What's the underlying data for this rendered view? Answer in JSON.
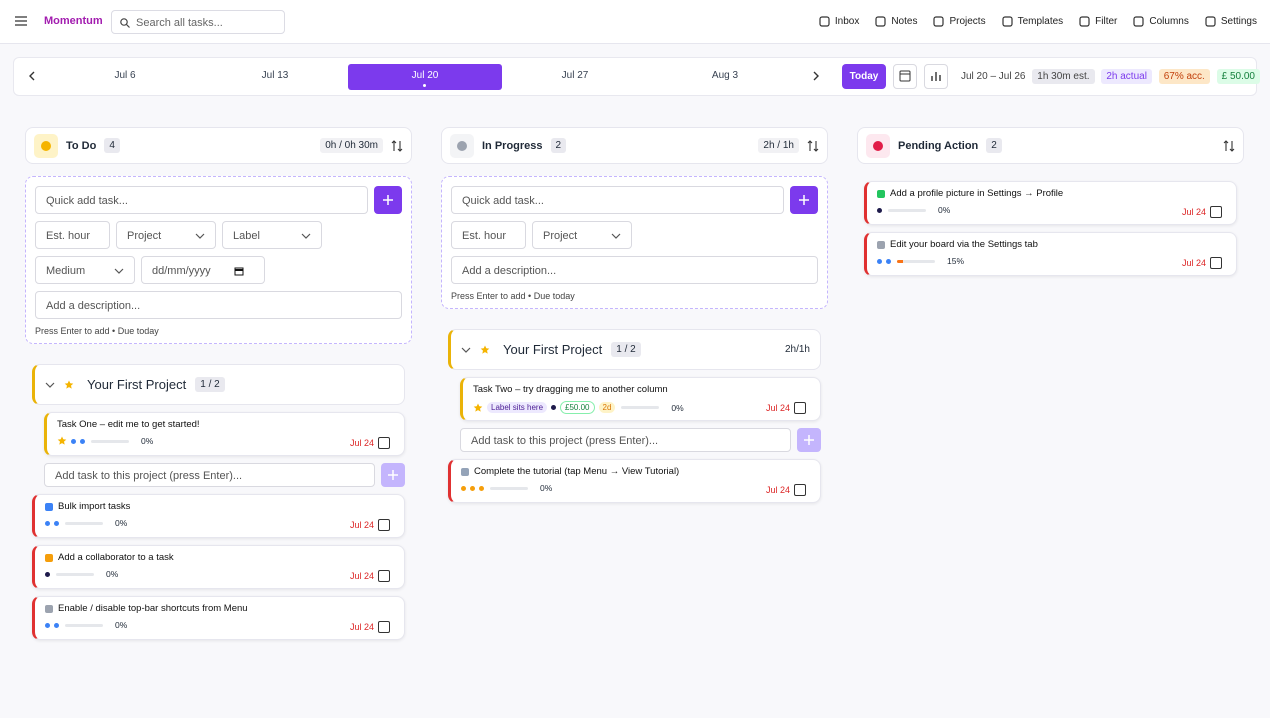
{
  "header": {
    "brand": "Momentum",
    "search": "Search all tasks...",
    "nav": [
      "Inbox",
      "Notes",
      "Projects",
      "Templates",
      "Filter",
      "Columns",
      "Settings"
    ]
  },
  "week_bar": {
    "weeks": [
      {
        "label": "Jul 6"
      },
      {
        "label": "Jul 13"
      },
      {
        "label": "Jul 20",
        "selected": true
      },
      {
        "label": "Jul 27"
      },
      {
        "label": "Aug 3"
      }
    ],
    "today": "Today",
    "range": "Jul 20 – Jul 26",
    "estimate": "1h 30m est.",
    "actual": "2h actual",
    "accuracy": "67% acc.",
    "money": "£ 50.00"
  },
  "columns": [
    {
      "title": "To Do",
      "count": 4,
      "time": "0h / 0h 30m",
      "icon_bg": "#fef3c7",
      "icon_color": "#f5b400",
      "form": {
        "quick": "Quick add task...",
        "est": "Est. hour",
        "project": "Project",
        "label": "Label",
        "priority": "Medium",
        "date": "dd/mm/yyyy",
        "description": "Add a description...",
        "hint": "Press Enter to add • Due today"
      },
      "projects": [
        {
          "name": "Your First Project",
          "count": "1 / 2",
          "add": "Add task to this project (press Enter)...",
          "tasks": [
            {
              "title": "Task One – edit me to get started!",
              "starred": true,
              "dots": [
                "#3b82f6",
                "#3b82f6"
              ],
              "progress": {
                "value": 0,
                "label": "0%"
              },
              "due": "Jul 24",
              "accent": "#eab308"
            }
          ]
        }
      ],
      "tasks": [
        {
          "title": "Bulk import tasks",
          "icon": "#3b82f6",
          "dots": [
            "#3b82f6",
            "#3b82f6"
          ],
          "progress": {
            "value": 0,
            "label": "0%"
          },
          "due": "Jul 24",
          "accent": "#e03131"
        },
        {
          "title": "Add a collaborator to a task",
          "icon": "#f59e0b",
          "dots": [
            "#1e1b4b"
          ],
          "progress": {
            "value": 0,
            "label": "0%"
          },
          "due": "Jul 24",
          "accent": "#e03131"
        },
        {
          "title": "Enable / disable top-bar shortcuts from Menu",
          "icon": "#9ca3af",
          "dots": [
            "#3b82f6",
            "#3b82f6"
          ],
          "progress": {
            "value": 0,
            "label": "0%"
          },
          "due": "Jul 24",
          "accent": "#e03131"
        }
      ]
    },
    {
      "title": "In Progress",
      "count": 2,
      "time": "2h / 1h",
      "icon_bg": "#f3f4f6",
      "icon_color": "#9ca3af",
      "form": {
        "quick": "Quick add task...",
        "est": "Est. hour",
        "project": "Project",
        "description": "Add a description...",
        "hint": "Press Enter to add • Due today"
      },
      "projects": [
        {
          "name": "Your First Project",
          "count": "1 / 2",
          "time": "2h/1h",
          "add": "Add task to this project (press Enter)...",
          "tasks": [
            {
              "title": "Task Two – try dragging me to another column",
              "starred": true,
              "label": "Label sits here",
              "dots": [
                "#1e1b4b"
              ],
              "amount": "£50.00",
              "duration": "2d",
              "progress": {
                "value": 0,
                "label": "0%"
              },
              "due": "Jul 24",
              "accent": "#eab308"
            }
          ]
        }
      ],
      "tasks": [
        {
          "title": "Complete the tutorial (tap Menu → View Tutorial)",
          "icon": "#94a3b8",
          "dots": [
            "#f59e0b",
            "#f59e0b",
            "#f59e0b"
          ],
          "progress": {
            "value": 0,
            "label": "0%"
          },
          "due": "Jul 24",
          "accent": "#e03131"
        }
      ]
    },
    {
      "title": "Pending Action",
      "count": 2,
      "icon_bg": "#fde8ef",
      "icon_color": "#e11d48",
      "tasks": [
        {
          "title": "Add a profile picture in Settings → Profile",
          "icon": "#22c55e",
          "dots": [
            "#1e1b4b"
          ],
          "progress": {
            "value": 0,
            "label": "0%"
          },
          "due": "Jul 24",
          "accent": "#e03131"
        },
        {
          "title": "Edit your board via the Settings tab",
          "icon": "#9ca3af",
          "dots": [
            "#3b82f6",
            "#3b82f6"
          ],
          "bar_color": "#f97316",
          "progress": {
            "value": 15,
            "label": "15%"
          },
          "due": "Jul 24",
          "accent": "#e03131"
        }
      ]
    }
  ]
}
